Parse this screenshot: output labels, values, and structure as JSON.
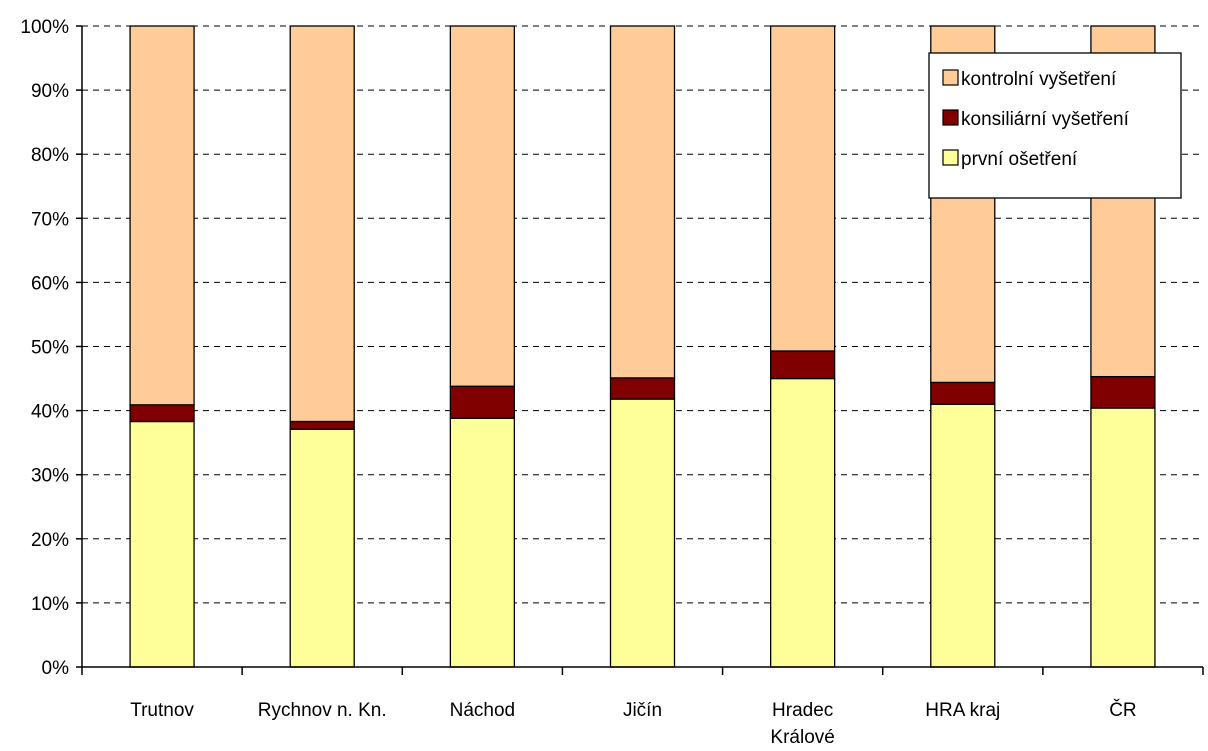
{
  "chart_data": {
    "type": "bar",
    "stacked": true,
    "percent": true,
    "categories": [
      "Trutnov",
      "Rychnov n. Kn.",
      "Náchod",
      "Jičín",
      "Hradec Králové",
      "HRA kraj",
      "ČR"
    ],
    "category_lines": [
      [
        "Trutnov"
      ],
      [
        "Rychnov n. Kn."
      ],
      [
        "Náchod"
      ],
      [
        "Jičín"
      ],
      [
        "Hradec",
        "Králové"
      ],
      [
        "HRA kraj"
      ],
      [
        "ČR"
      ]
    ],
    "series": [
      {
        "name": "první ošetření",
        "color": "#FFFF99",
        "values": [
          38.3,
          37.1,
          38.8,
          41.8,
          45.0,
          41.0,
          40.4
        ]
      },
      {
        "name": "konsiliární vyšetření",
        "color": "#800000",
        "values": [
          2.6,
          1.2,
          5.0,
          3.3,
          4.3,
          3.4,
          4.9
        ]
      },
      {
        "name": "kontrolní vyšetření",
        "color": "#FFCC99",
        "values": [
          59.1,
          61.7,
          56.2,
          54.9,
          50.7,
          55.6,
          54.7
        ]
      }
    ],
    "ylim": [
      0,
      100
    ],
    "yticks": [
      "0%",
      "10%",
      "20%",
      "30%",
      "40%",
      "50%",
      "60%",
      "70%",
      "80%",
      "90%",
      "100%"
    ],
    "grid": true,
    "legend": {
      "placement": "top-right",
      "order": [
        "kontrolní vyšetření",
        "konsiliární vyšetření",
        "první ošetření"
      ]
    }
  }
}
